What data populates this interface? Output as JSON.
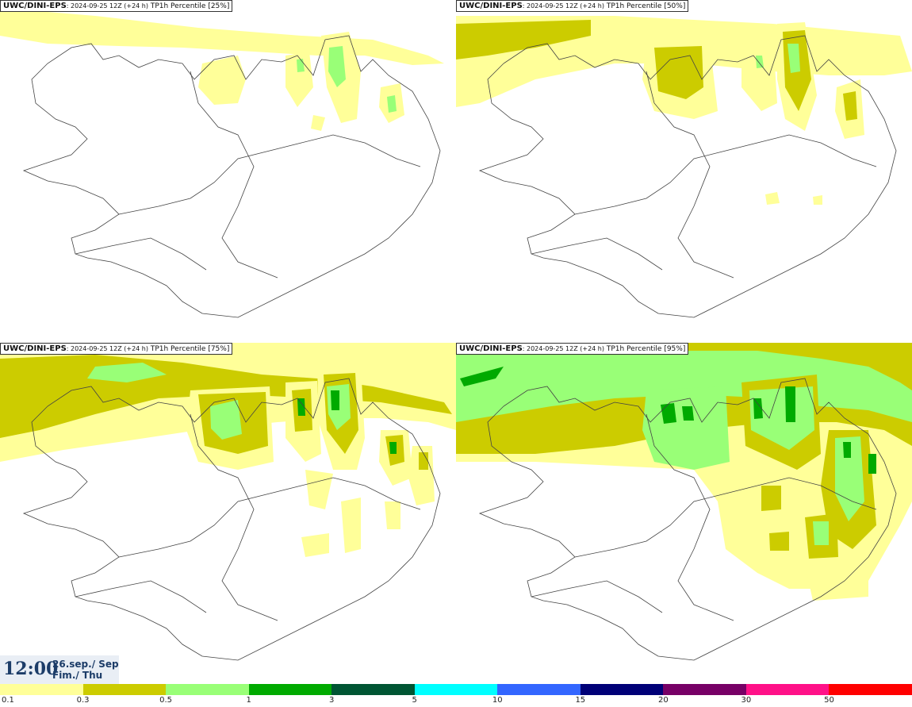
{
  "panels": [
    {
      "model": "UWC/DINI-EPS",
      "run": ": 2024-09-25 12Z (+24 h)",
      "field": " TP1h Percentile [25%]",
      "percentile": 25
    },
    {
      "model": "UWC/DINI-EPS",
      "run": ": 2024-09-25 12Z (+24 h)",
      "field": " TP1h Percentile [50%]",
      "percentile": 50
    },
    {
      "model": "UWC/DINI-EPS",
      "run": ": 2024-09-25 12Z (+24 h)",
      "field": " TP1h Percentile [75%]",
      "percentile": 75
    },
    {
      "model": "UWC/DINI-EPS",
      "run": ": 2024-09-25 12Z (+24 h)",
      "field": " TP1h Percentile [95%]",
      "percentile": 95
    }
  ],
  "valid_time": {
    "time": "12:00",
    "date_line1": "26.sep./ Sep",
    "date_line2": "Fim./ Thu"
  },
  "legend": {
    "labels": [
      "0.1",
      "0.3",
      "0.5",
      "1",
      "3",
      "5",
      "10",
      "15",
      "20",
      "30",
      "50"
    ],
    "colors": [
      "#ffff99",
      "#cccc00",
      "#99ff77",
      "#00aa00",
      "#005533",
      "#00ffff",
      "#3366ff",
      "#000077",
      "#770066",
      "#ff1188",
      "#ff0000"
    ]
  }
}
